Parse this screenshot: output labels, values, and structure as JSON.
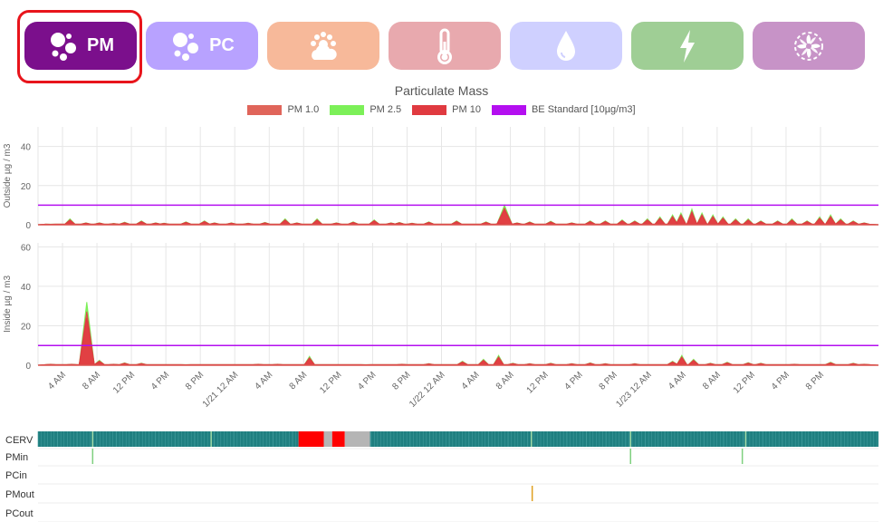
{
  "tabs": [
    {
      "id": "pm",
      "label": "PM",
      "icon": "particles-icon",
      "color": "#7b0f8c",
      "selected": true
    },
    {
      "id": "pc",
      "label": "PC",
      "icon": "particles-icon",
      "color": "#b8a2ff",
      "selected": false
    },
    {
      "id": "weather",
      "label": "",
      "icon": "cloud-sun-icon",
      "color": "#f7b99a",
      "selected": false
    },
    {
      "id": "temperature",
      "label": "",
      "icon": "thermometer-icon",
      "color": "#e8a9ae",
      "selected": false
    },
    {
      "id": "humidity",
      "label": "",
      "icon": "water-drop-icon",
      "color": "#cfd0ff",
      "selected": false
    },
    {
      "id": "power",
      "label": "",
      "icon": "lightning-icon",
      "color": "#9fce95",
      "selected": false
    },
    {
      "id": "fan",
      "label": "",
      "icon": "fan-icon",
      "color": "#c793c7",
      "selected": false
    }
  ],
  "chart_data": {
    "type": "area",
    "title": "Particulate Mass",
    "legend": [
      {
        "name": "PM 1.0",
        "color": "#e0655a"
      },
      {
        "name": "PM 2.5",
        "color": "#7cf058"
      },
      {
        "name": "PM 10",
        "color": "#e03a40"
      },
      {
        "name": "BE Standard [10µg/m3]",
        "color": "#b40ff0"
      }
    ],
    "legend_position": "top-center",
    "x_ticks": [
      "4 AM",
      "8 AM",
      "12 PM",
      "4 PM",
      "8 PM",
      "1/21 12 AM",
      "4 AM",
      "8 AM",
      "12 PM",
      "4 PM",
      "8 PM",
      "1/22 12 AM",
      "4 AM",
      "8 AM",
      "12 PM",
      "4 PM",
      "8 PM",
      "1/23 12 AM",
      "4 AM",
      "8 AM",
      "12 PM",
      "4 PM",
      "8 PM"
    ],
    "panels": [
      {
        "name": "outside",
        "ylabel": "Outside µg / m3",
        "y_ticks": [
          0,
          20,
          40
        ],
        "ylim": [
          0,
          50
        ],
        "standard": 10,
        "peaks": [
          [
            1.5,
            0.3
          ],
          [
            3.8,
            3
          ],
          [
            5.7,
            1
          ],
          [
            7.3,
            1
          ],
          [
            9,
            0.7
          ],
          [
            10.3,
            1.3
          ],
          [
            12.3,
            2
          ],
          [
            14,
            1
          ],
          [
            15,
            0.8
          ],
          [
            17.6,
            1.5
          ],
          [
            19.8,
            2
          ],
          [
            21,
            1
          ],
          [
            23,
            1
          ],
          [
            25,
            0.8
          ],
          [
            27,
            1.2
          ],
          [
            29.4,
            3
          ],
          [
            30.8,
            1
          ],
          [
            33.2,
            3
          ],
          [
            35.5,
            1
          ],
          [
            37.5,
            1.5
          ],
          [
            40,
            2.5
          ],
          [
            42,
            1
          ],
          [
            43,
            1.2
          ],
          [
            44.5,
            0.8
          ],
          [
            46.5,
            1.5
          ],
          [
            49.8,
            2
          ],
          [
            53.3,
            1.5
          ],
          [
            55,
            0.8
          ],
          [
            55.5,
            10
          ],
          [
            57,
            1
          ],
          [
            58.5,
            1.5
          ],
          [
            61,
            1.8
          ],
          [
            63.5,
            1
          ],
          [
            65.7,
            2
          ],
          [
            67.5,
            2
          ],
          [
            69.5,
            2.5
          ],
          [
            71,
            2
          ],
          [
            72.5,
            3
          ],
          [
            74,
            4
          ],
          [
            75.5,
            5
          ],
          [
            76.5,
            6
          ],
          [
            77.8,
            8
          ],
          [
            79,
            6
          ],
          [
            80.3,
            5
          ],
          [
            81.5,
            4
          ],
          [
            83,
            3
          ],
          [
            84.5,
            3
          ],
          [
            86,
            2
          ],
          [
            88,
            2
          ],
          [
            89.7,
            3
          ],
          [
            91.5,
            2
          ],
          [
            93,
            4
          ],
          [
            94.3,
            5
          ],
          [
            95.5,
            3
          ],
          [
            97,
            2
          ],
          [
            98.3,
            1
          ]
        ]
      },
      {
        "name": "inside",
        "ylabel": "Inside µg / m3",
        "y_ticks": [
          0,
          20,
          40,
          60
        ],
        "ylim": [
          0,
          62
        ],
        "standard": 10,
        "peaks": [
          [
            1.5,
            0.5
          ],
          [
            4,
            0.5
          ],
          [
            5.8,
            32
          ],
          [
            7.3,
            2.5
          ],
          [
            9,
            0.5
          ],
          [
            10.3,
            1.2
          ],
          [
            12.3,
            1
          ],
          [
            17.6,
            0.3
          ],
          [
            26.2,
            0.5
          ],
          [
            28.5,
            0.5
          ],
          [
            32.3,
            4.5
          ],
          [
            39,
            0.3
          ],
          [
            43.3,
            0.5
          ],
          [
            46.5,
            0.8
          ],
          [
            50.5,
            2
          ],
          [
            53,
            3
          ],
          [
            54.8,
            5
          ],
          [
            56.5,
            1
          ],
          [
            58.5,
            0.8
          ],
          [
            61,
            1
          ],
          [
            63.5,
            0.8
          ],
          [
            65.7,
            1.2
          ],
          [
            67.5,
            0.8
          ],
          [
            71,
            0.8
          ],
          [
            75.5,
            2
          ],
          [
            76.6,
            5
          ],
          [
            78,
            3
          ],
          [
            80,
            1
          ],
          [
            82,
            1.5
          ],
          [
            84.5,
            1.3
          ],
          [
            86,
            1
          ],
          [
            90,
            0.5
          ],
          [
            94.3,
            1.5
          ],
          [
            97,
            1
          ],
          [
            98.3,
            0.5
          ]
        ]
      }
    ]
  },
  "status_rows": [
    {
      "name": "CERV",
      "segments": [
        [
          0,
          31,
          "#1f7f80"
        ],
        [
          31,
          34,
          "#ff0000"
        ],
        [
          34,
          35,
          "#b5b5b5"
        ],
        [
          35,
          36.5,
          "#ff0000"
        ],
        [
          36.5,
          39.5,
          "#b5b5b5"
        ],
        [
          39.5,
          100,
          "#1f7f80"
        ]
      ],
      "lines": [
        [
          6.5,
          "#9fd9a6"
        ],
        [
          20.6,
          "#9fd9a6"
        ],
        [
          58.7,
          "#9fd9a6"
        ],
        [
          70.5,
          "#9fd9a6"
        ],
        [
          84.2,
          "#9fd9a6"
        ]
      ]
    },
    {
      "name": "PMin",
      "lines": [
        [
          6.5,
          "#7fd07f"
        ],
        [
          70.5,
          "#7fd07f"
        ],
        [
          83.8,
          "#7fd07f"
        ]
      ]
    },
    {
      "name": "PCin",
      "lines": []
    },
    {
      "name": "PMout",
      "lines": [
        [
          58.8,
          "#e0a020"
        ]
      ]
    },
    {
      "name": "PCout",
      "lines": []
    }
  ]
}
